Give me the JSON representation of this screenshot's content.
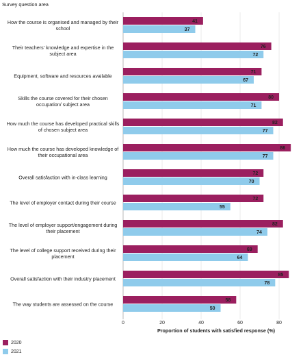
{
  "chart_data": {
    "type": "bar",
    "orientation": "horizontal",
    "y_label": "Survey question area",
    "x_label": "Proportion of students with satisfied response (%)",
    "categories": [
      "How the course is organised and managed by their school",
      "Their teachers' knowledge and expertise in the subject area",
      "Equipment, software and resources available",
      "Skills the course covered for their chosen occupation/ subject area",
      "How much the course has developed practical skills of chosen subject area",
      "How much the course has developed knowledge of their occupational area",
      "Overall satisfaction with in-class learning",
      "The level of employer contact during their course",
      "The level of employer support/engagement during their placement",
      "The level of college support received during their placement",
      "Overall satisfaction with their industry placement",
      "The way students are assessed on the course"
    ],
    "series": [
      {
        "name": "2020",
        "color": "#9b1f5f",
        "values": [
          41,
          76,
          71,
          80,
          82,
          86,
          72,
          72,
          82,
          69,
          85,
          58
        ]
      },
      {
        "name": "2021",
        "color": "#8fcbeb",
        "values": [
          37,
          72,
          67,
          71,
          77,
          77,
          70,
          55,
          74,
          64,
          78,
          50
        ]
      }
    ],
    "xlim": [
      0,
      87
    ],
    "xticks": [
      0,
      20,
      40,
      60,
      80
    ],
    "grid": true,
    "legend": "bottom-left"
  }
}
